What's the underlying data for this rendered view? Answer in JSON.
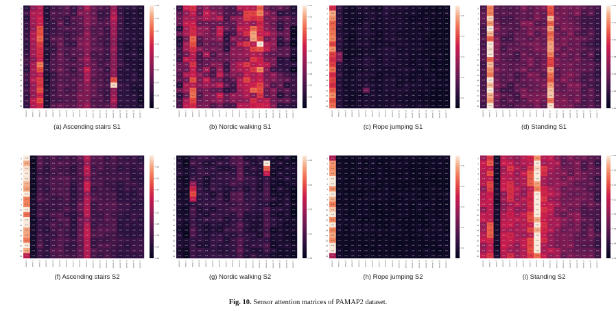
{
  "figure": {
    "label": "Fig. 10.",
    "caption": "Sensor attention matrices of PAMAP2 dataset."
  },
  "chart_data": [
    {
      "type": "heatmap",
      "caption": "(a) Ascending stairs S1",
      "colorbar": {
        "min": 0.025,
        "max": 0.225,
        "ticks": [
          "0.225",
          "0.200",
          "0.175",
          "0.150",
          "0.125",
          "0.100",
          "0.075",
          "0.050",
          "0.025"
        ]
      },
      "rows": 20,
      "cols": 18,
      "base": [
        0.06,
        0.12,
        0.15,
        0.05,
        0.07,
        0.08,
        0.07,
        0.07,
        0.09,
        0.11,
        0.08,
        0.07,
        0.07,
        0.12,
        0.06,
        0.05,
        0.05,
        0.04
      ],
      "hotspots": [
        {
          "r": 5,
          "c": 2,
          "v": 0.17
        },
        {
          "r": 6,
          "c": 2,
          "v": 0.18
        },
        {
          "r": 7,
          "c": 2,
          "v": 0.16
        },
        {
          "r": 11,
          "c": 2,
          "v": 0.19
        },
        {
          "r": 12,
          "c": 2,
          "v": 0.17
        },
        {
          "r": 15,
          "c": 13,
          "v": 0.22
        },
        {
          "r": 14,
          "c": 13,
          "v": 0.17
        },
        {
          "r": 12,
          "c": 9,
          "v": 0.14
        }
      ]
    },
    {
      "type": "heatmap",
      "caption": "(b) Nordic walking S1",
      "colorbar": {
        "min": 0.05,
        "max": 0.14,
        "ticks": [
          "0.14",
          "0.13",
          "0.12",
          "0.11",
          "0.10",
          "0.09",
          "0.08",
          "0.07",
          "0.06"
        ]
      },
      "rows": 20,
      "cols": 18,
      "base": [
        0.07,
        0.09,
        0.11,
        0.08,
        0.09,
        0.08,
        0.09,
        0.07,
        0.08,
        0.09,
        0.1,
        0.1,
        0.11,
        0.09,
        0.08,
        0.07,
        0.07,
        0.06
      ],
      "hotspots": [
        {
          "r": 6,
          "c": 2,
          "v": 0.12
        },
        {
          "r": 5,
          "c": 11,
          "v": 0.13
        },
        {
          "r": 6,
          "c": 11,
          "v": 0.13
        },
        {
          "r": 7,
          "c": 12,
          "v": 0.14
        },
        {
          "r": 4,
          "c": 11,
          "v": 0.12
        },
        {
          "r": 16,
          "c": 11,
          "v": 0.12
        }
      ]
    },
    {
      "type": "heatmap",
      "caption": "(c) Rope jumping S1",
      "colorbar": {
        "min": 0.05,
        "max": 0.55,
        "ticks": [
          "0.5",
          "0.4",
          "0.3",
          "0.2",
          "0.1"
        ]
      },
      "rows": 20,
      "cols": 18,
      "base": [
        0.42,
        0.12,
        0.08,
        0.08,
        0.09,
        0.1,
        0.09,
        0.08,
        0.1,
        0.1,
        0.09,
        0.09,
        0.08,
        0.08,
        0.08,
        0.07,
        0.07,
        0.07
      ],
      "hotspots": [
        {
          "r": 1,
          "c": 0,
          "v": 0.5
        },
        {
          "r": 2,
          "c": 0,
          "v": 0.48
        },
        {
          "r": 9,
          "c": 1,
          "v": 0.25
        },
        {
          "r": 10,
          "c": 1,
          "v": 0.24
        },
        {
          "r": 16,
          "c": 5,
          "v": 0.22
        }
      ]
    },
    {
      "type": "heatmap",
      "caption": "(d) Standing S1",
      "colorbar": {
        "min": 0.02,
        "max": 0.14,
        "ticks": [
          "0.14",
          "0.12",
          "0.10",
          "0.08",
          "0.06",
          "0.04",
          "0.02"
        ]
      },
      "rows": 20,
      "cols": 18,
      "base": [
        0.05,
        0.13,
        0.06,
        0.05,
        0.05,
        0.05,
        0.06,
        0.06,
        0.06,
        0.06,
        0.12,
        0.06,
        0.06,
        0.06,
        0.06,
        0.05,
        0.05,
        0.04
      ],
      "hotspots": [
        {
          "r": 4,
          "c": 1,
          "v": 0.14
        },
        {
          "r": 9,
          "c": 1,
          "v": 0.14
        }
      ]
    },
    {
      "type": "heatmap",
      "caption": "(f) Ascending stairs S2",
      "colorbar": {
        "min": 0.02,
        "max": 0.2,
        "ticks": [
          "0.18",
          "0.16",
          "0.14",
          "0.12",
          "0.10",
          "0.08",
          "0.06",
          "0.04",
          "0.02"
        ]
      },
      "rows": 20,
      "cols": 18,
      "base": [
        0.19,
        0.03,
        0.06,
        0.05,
        0.06,
        0.06,
        0.06,
        0.05,
        0.07,
        0.11,
        0.06,
        0.06,
        0.06,
        0.06,
        0.05,
        0.05,
        0.05,
        0.05
      ],
      "hotspots": [
        {
          "r": 0,
          "c": 0,
          "v": 0.2
        },
        {
          "r": 19,
          "c": 0,
          "v": 0.12
        }
      ]
    },
    {
      "type": "heatmap",
      "caption": "(g) Nordic walking S2",
      "colorbar": {
        "min": 0.05,
        "max": 0.26,
        "ticks": [
          "0.25",
          "0.20",
          "0.15",
          "0.10",
          "0.05"
        ]
      },
      "rows": 20,
      "cols": 18,
      "base": [
        0.07,
        0.06,
        0.09,
        0.08,
        0.08,
        0.08,
        0.08,
        0.08,
        0.09,
        0.1,
        0.08,
        0.08,
        0.08,
        0.09,
        0.07,
        0.07,
        0.07,
        0.06
      ],
      "hotspots": [
        {
          "r": 1,
          "c": 13,
          "v": 0.26
        },
        {
          "r": 2,
          "c": 13,
          "v": 0.21
        },
        {
          "r": 3,
          "c": 13,
          "v": 0.17
        },
        {
          "r": 6,
          "c": 2,
          "v": 0.18
        },
        {
          "r": 7,
          "c": 2,
          "v": 0.2
        },
        {
          "r": 8,
          "c": 2,
          "v": 0.17
        },
        {
          "r": 5,
          "c": 2,
          "v": 0.14
        }
      ]
    },
    {
      "type": "heatmap",
      "caption": "(h) Rope jumping S2",
      "colorbar": {
        "min": 0.05,
        "max": 0.55,
        "ticks": [
          "0.5",
          "0.4",
          "0.3",
          "0.2",
          "0.1"
        ]
      },
      "rows": 20,
      "cols": 18,
      "base": [
        0.52,
        0.08,
        0.07,
        0.07,
        0.07,
        0.07,
        0.07,
        0.07,
        0.07,
        0.07,
        0.07,
        0.07,
        0.07,
        0.07,
        0.07,
        0.07,
        0.07,
        0.07
      ],
      "hotspots": [
        {
          "r": 0,
          "c": 0,
          "v": 0.3
        },
        {
          "r": 19,
          "c": 0,
          "v": 0.3
        }
      ]
    },
    {
      "type": "heatmap",
      "caption": "(i) Standing S2",
      "colorbar": {
        "min": 0.02,
        "max": 0.16,
        "ticks": [
          "0.16",
          "0.14",
          "0.12",
          "0.10",
          "0.08",
          "0.06",
          "0.04",
          "0.02"
        ]
      },
      "rows": 20,
      "cols": 18,
      "base": [
        0.09,
        0.11,
        0.03,
        0.09,
        0.1,
        0.09,
        0.09,
        0.11,
        0.16,
        0.1,
        0.09,
        0.08,
        0.07,
        0.07,
        0.07,
        0.06,
        0.06,
        0.05
      ],
      "hotspots": [
        {
          "r": 0,
          "c": 8,
          "v": 0.14
        },
        {
          "r": 19,
          "c": 8,
          "v": 0.13
        }
      ]
    }
  ],
  "colors": {
    "low": "#03051a",
    "high": "#faebdd"
  }
}
